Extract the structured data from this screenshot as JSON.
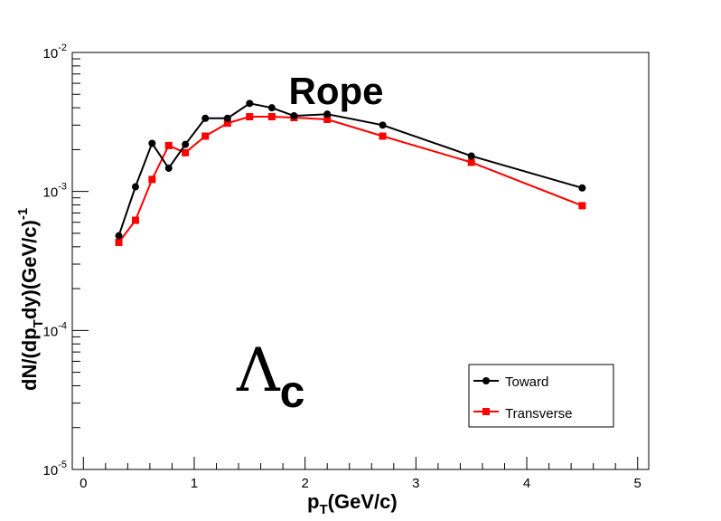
{
  "chart_data": {
    "type": "line",
    "annotation_title": "Rope",
    "annotation_symbol": "Λ",
    "annotation_subscript": "c",
    "xlabel": "p",
    "xlabel_sub": "T",
    "xlabel_rest": "(GeV/c)",
    "ylabel": "dN/(dp",
    "ylabel_sub": "T",
    "ylabel_mid": "dy)(GeV/c)",
    "ylabel_sup": "-1",
    "xlim": [
      -0.1,
      5.1
    ],
    "ylim": [
      1e-05,
      0.01
    ],
    "yscale": "log",
    "grid": false,
    "legend_position": "bottom-right",
    "x_ticks": [
      "0",
      "1",
      "2",
      "3",
      "4",
      "5"
    ],
    "y_ticks": [
      {
        "base": "10",
        "exp": "-5"
      },
      {
        "base": "10",
        "exp": "-4"
      },
      {
        "base": "10",
        "exp": "-3"
      },
      {
        "base": "10",
        "exp": "-2"
      }
    ],
    "series": [
      {
        "name": "Toward",
        "color": "#000000",
        "marker": "circle",
        "x": [
          0.32,
          0.47,
          0.62,
          0.77,
          0.92,
          1.1,
          1.3,
          1.5,
          1.7,
          1.9,
          2.2,
          2.7,
          3.5,
          4.5
        ],
        "y": [
          0.00048,
          0.00108,
          0.00222,
          0.00147,
          0.00218,
          0.00336,
          0.00336,
          0.0043,
          0.004,
          0.0035,
          0.0036,
          0.003,
          0.0018,
          0.00106
        ]
      },
      {
        "name": "Transverse",
        "color": "#ff0000",
        "marker": "square",
        "x": [
          0.32,
          0.47,
          0.62,
          0.77,
          0.92,
          1.1,
          1.3,
          1.5,
          1.7,
          1.9,
          2.2,
          2.7,
          3.5,
          4.5
        ],
        "y": [
          0.00043,
          0.00062,
          0.00122,
          0.00214,
          0.0019,
          0.0025,
          0.0031,
          0.00345,
          0.00345,
          0.0034,
          0.0033,
          0.0025,
          0.00162,
          0.00079
        ]
      }
    ]
  }
}
